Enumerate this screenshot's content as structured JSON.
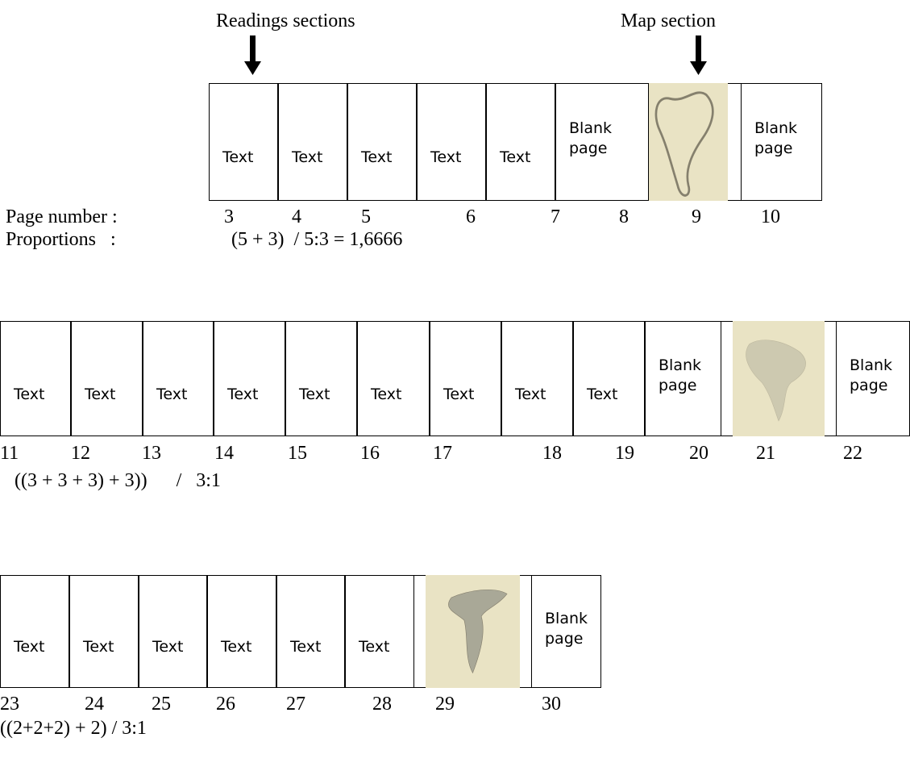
{
  "annotations": {
    "readings": "Readings sections",
    "map": "Map section"
  },
  "labels": {
    "page_number": "Page number :",
    "proportions": "Proportions   :"
  },
  "rows": [
    {
      "pages": [
        {
          "number": 3,
          "label": "Text"
        },
        {
          "number": 4,
          "label": "Text"
        },
        {
          "number": 5,
          "label": "Text"
        },
        {
          "number": 6,
          "label": "Text"
        },
        {
          "number": 7,
          "label": "Text"
        },
        {
          "number": 8,
          "label": "Blank page"
        },
        {
          "number": 9
        },
        {
          "number": 10,
          "label": "Blank page"
        }
      ],
      "formula": "(5 + 3)  / 5:3 = 1,6666"
    },
    {
      "pages": [
        {
          "number": 11,
          "label": "Text"
        },
        {
          "number": 12,
          "label": "Text"
        },
        {
          "number": 13,
          "label": "Text"
        },
        {
          "number": 14,
          "label": "Text"
        },
        {
          "number": 15,
          "label": "Text"
        },
        {
          "number": 16,
          "label": "Text"
        },
        {
          "number": 17,
          "label": "Text"
        },
        {
          "number": 18,
          "label": "Text"
        },
        {
          "number": 19,
          "label": "Text"
        },
        {
          "number": 20,
          "label": "Blank page"
        },
        {
          "number": 21
        },
        {
          "number": 22,
          "label": "Blank page"
        }
      ],
      "formula": "((3 + 3 + 3) + 3))      /   3:1"
    },
    {
      "pages": [
        {
          "number": 23,
          "label": "Text"
        },
        {
          "number": 24,
          "label": "Text"
        },
        {
          "number": 25,
          "label": "Text"
        },
        {
          "number": 26,
          "label": "Text"
        },
        {
          "number": 27,
          "label": "Text"
        },
        {
          "number": 28,
          "label": "Text"
        },
        {
          "number": 29
        },
        {
          "number": 30,
          "label": "Blank page"
        }
      ],
      "formula": "((2+2+2) + 2) / 3:1"
    }
  ]
}
